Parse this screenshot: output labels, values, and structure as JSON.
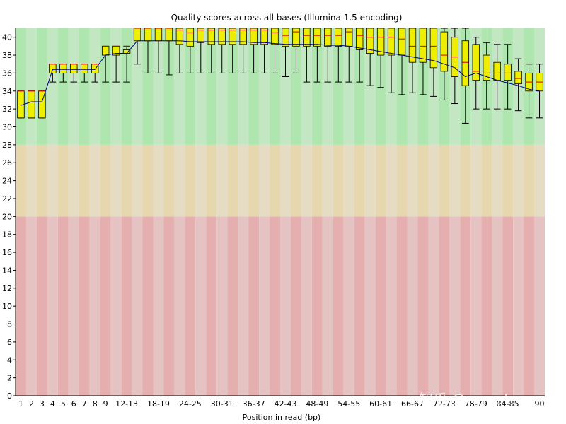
{
  "chart_data": {
    "type": "box",
    "title": "Quality scores across all bases (Illumina 1.5 encoding)",
    "xlabel": "Position in read (bp)",
    "ylabel": "",
    "ylim": [
      0,
      41
    ],
    "yticks": [
      0,
      2,
      4,
      6,
      8,
      10,
      12,
      14,
      16,
      18,
      20,
      22,
      24,
      26,
      28,
      30,
      32,
      34,
      36,
      38,
      40
    ],
    "bands": [
      {
        "name": "poor",
        "from": 0,
        "to": 20,
        "colors": [
          "#e6afaf",
          "#e6c3c3"
        ]
      },
      {
        "name": "reasonable",
        "from": 20,
        "to": 28,
        "colors": [
          "#e6d7af",
          "#e6dcc3"
        ]
      },
      {
        "name": "good",
        "from": 28,
        "to": 41,
        "colors": [
          "#afe6af",
          "#c3e6c3"
        ]
      }
    ],
    "box_color": "#eeee00",
    "median_color": "#cc0000",
    "mean_color": "#000080",
    "categories": [
      "1",
      "2",
      "3",
      "4",
      "5",
      "6",
      "7",
      "8",
      "9",
      "10-11",
      "12-13",
      "14-15",
      "16-17",
      "18-19",
      "20-21",
      "22-23",
      "24-25",
      "26-27",
      "28-29",
      "30-31",
      "32-33",
      "34-35",
      "36-37",
      "38-39",
      "40-41",
      "42-43",
      "44-45",
      "46-47",
      "48-49",
      "50-51",
      "52-53",
      "54-55",
      "56-57",
      "58-59",
      "60-61",
      "62-63",
      "64-65",
      "66-67",
      "68-69",
      "70-71",
      "72-73",
      "74-75",
      "76-77",
      "78-79",
      "80-81",
      "82-83",
      "84-85",
      "86-87",
      "88-89",
      "90"
    ],
    "visible_tick_labels": [
      "1",
      "2",
      "3",
      "4",
      "5",
      "6",
      "7",
      "8",
      "9",
      "12-13",
      "18-19",
      "24-25",
      "30-31",
      "36-37",
      "42-43",
      "48-49",
      "54-55",
      "60-61",
      "66-67",
      "72-73",
      "78-79",
      "84-85",
      "90"
    ],
    "series": [
      {
        "name": "whisker_low",
        "values": [
          31,
          31,
          31,
          35,
          35,
          35,
          35,
          35,
          35,
          35,
          35,
          37,
          36,
          36,
          35.8,
          36,
          36,
          36,
          36,
          36,
          36,
          36,
          36,
          36,
          36,
          35.6,
          36,
          35,
          35,
          35,
          35,
          35,
          35,
          34.6,
          34.4,
          33.8,
          33.6,
          33.8,
          33.6,
          33.4,
          33,
          32.6,
          30.4,
          32,
          32,
          32,
          32,
          31.8,
          31,
          31
        ]
      },
      {
        "name": "q1",
        "values": [
          31,
          31,
          31,
          36,
          36,
          36,
          36,
          36,
          38,
          38,
          38.2,
          39.6,
          39.6,
          39.6,
          39.6,
          39.2,
          39,
          39.4,
          39.2,
          39.2,
          39.2,
          39.2,
          39.2,
          39.2,
          39.2,
          39,
          39,
          39,
          39,
          39,
          39,
          39,
          38.6,
          38.2,
          38,
          38,
          38,
          37.2,
          37.2,
          36.6,
          36.2,
          35.6,
          34.6,
          35.2,
          35.2,
          35.2,
          35.2,
          34.8,
          34,
          34
        ]
      },
      {
        "name": "median",
        "values": [
          34,
          34,
          34,
          37,
          37,
          37,
          37,
          37,
          39,
          39,
          39,
          41,
          41,
          41,
          41,
          40.8,
          40.5,
          40.8,
          40.8,
          40.8,
          40.8,
          40.8,
          40.8,
          40.8,
          40.5,
          40.2,
          40.6,
          40.2,
          40.2,
          40.2,
          40.2,
          40.6,
          40.2,
          40,
          40,
          40,
          39.8,
          39,
          39,
          39,
          38,
          37.8,
          37.2,
          36.2,
          36,
          36,
          36,
          35.4,
          35,
          35
        ]
      },
      {
        "name": "q3",
        "values": [
          34,
          34,
          34,
          37,
          37,
          37,
          37,
          37,
          39,
          39,
          38.6,
          41,
          41,
          41,
          41,
          41,
          41,
          41,
          41,
          41,
          41,
          41,
          41,
          41,
          41,
          41,
          41,
          41,
          41,
          41,
          41,
          41,
          41,
          41,
          41,
          41,
          41,
          41,
          41,
          41,
          40.6,
          40,
          39.6,
          39.2,
          38,
          37.2,
          37,
          36.2,
          36,
          36
        ]
      },
      {
        "name": "whisker_high",
        "values": [
          34,
          34,
          34,
          37,
          37,
          37,
          37,
          37,
          39,
          39,
          39,
          41,
          41,
          41,
          41,
          41,
          41,
          41,
          41,
          41,
          41,
          41,
          41,
          41,
          41,
          41,
          41,
          41,
          41,
          41,
          41,
          41,
          41,
          41,
          41,
          41,
          41,
          41,
          41,
          41,
          41,
          41,
          41,
          40,
          39.4,
          39.2,
          39.2,
          37.6,
          37,
          37
        ]
      },
      {
        "name": "mean",
        "values": [
          32.4,
          32.8,
          32.8,
          36.4,
          36.4,
          36.4,
          36.4,
          36.4,
          38,
          38.2,
          38.2,
          39.6,
          39.6,
          39.6,
          39.6,
          39.6,
          39.5,
          39.5,
          39.5,
          39.5,
          39.5,
          39.5,
          39.4,
          39.4,
          39.3,
          39.2,
          39.2,
          39.2,
          39.2,
          39.1,
          39.1,
          39,
          38.8,
          38.6,
          38.4,
          38.2,
          38,
          37.8,
          37.6,
          37.4,
          37,
          36.6,
          35.6,
          36,
          35.6,
          35.2,
          34.9,
          34.6,
          34.2,
          34
        ]
      }
    ]
  },
  "watermark": "知乎 @wangtong"
}
